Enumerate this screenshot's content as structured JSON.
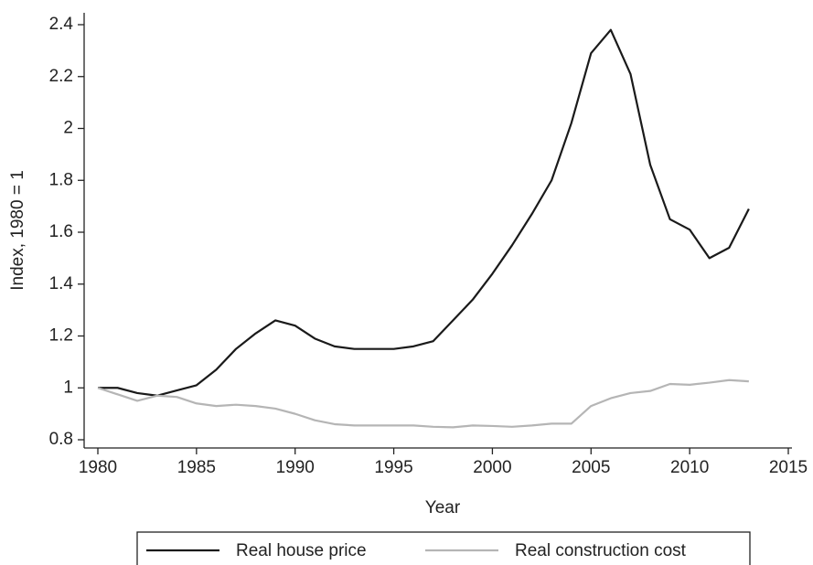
{
  "chart_data": {
    "type": "line",
    "x_label": "Year",
    "y_label": "Index, 1980 = 1",
    "x": [
      1980,
      1981,
      1982,
      1983,
      1984,
      1985,
      1986,
      1987,
      1988,
      1989,
      1990,
      1991,
      1992,
      1993,
      1994,
      1995,
      1996,
      1997,
      1998,
      1999,
      2000,
      2001,
      2002,
      2003,
      2004,
      2005,
      2006,
      2007,
      2008,
      2009,
      2010,
      2011,
      2012,
      2013
    ],
    "series": [
      {
        "name": "Real house price",
        "color": "#1a1a1a",
        "values": [
          1.0,
          1.0,
          0.98,
          0.97,
          0.99,
          1.01,
          1.07,
          1.15,
          1.21,
          1.26,
          1.24,
          1.19,
          1.16,
          1.15,
          1.15,
          1.15,
          1.16,
          1.18,
          1.26,
          1.34,
          1.44,
          1.55,
          1.67,
          1.8,
          2.02,
          2.29,
          2.38,
          2.21,
          1.86,
          1.65,
          1.61,
          1.5,
          1.54,
          1.69
        ]
      },
      {
        "name": "Real construction cost",
        "color": "#b5b5b5",
        "values": [
          1.0,
          0.975,
          0.95,
          0.97,
          0.965,
          0.94,
          0.93,
          0.935,
          0.93,
          0.92,
          0.9,
          0.875,
          0.86,
          0.855,
          0.855,
          0.855,
          0.855,
          0.85,
          0.848,
          0.855,
          0.853,
          0.85,
          0.855,
          0.862,
          0.862,
          0.93,
          0.96,
          0.98,
          0.988,
          1.015,
          1.012,
          1.02,
          1.03,
          1.025
        ]
      }
    ],
    "xlim": [
      1980,
      2015
    ],
    "xticks": [
      1980,
      1985,
      1990,
      1995,
      2000,
      2005,
      2010,
      2015
    ],
    "ylim": [
      0.8,
      2.4
    ],
    "yticks": [
      0.8,
      1,
      1.2,
      1.4,
      1.6,
      1.8,
      2,
      2.2,
      2.4
    ],
    "grid": false,
    "legend": "bottom"
  }
}
